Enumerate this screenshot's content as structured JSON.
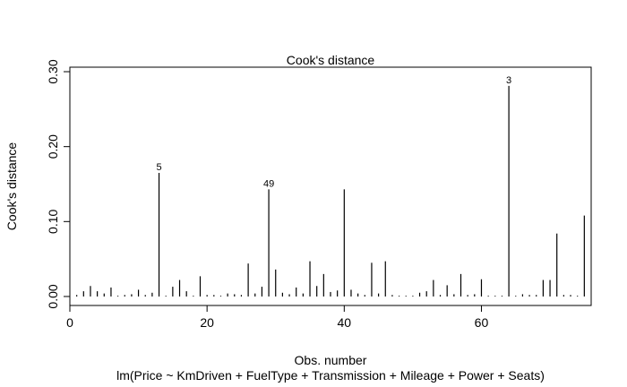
{
  "chart_data": {
    "type": "bar",
    "title": "Cook's distance",
    "xlabel": "Obs. number",
    "ylabel": "Cook's distance",
    "subtitle": "lm(Price ~ KmDriven + FuelType + Transmission + Mileage + Power + Seats)",
    "xlim": [
      0,
      76
    ],
    "ylim": [
      -0.012,
      0.306
    ],
    "xticks": [
      0,
      20,
      40,
      60
    ],
    "yticks": [
      0.0,
      0.1,
      0.2,
      0.3
    ],
    "ytick_labels": [
      "0.00",
      "0.10",
      "0.20",
      "0.30"
    ],
    "grid": false,
    "x": [
      1,
      2,
      3,
      4,
      5,
      6,
      7,
      8,
      9,
      10,
      11,
      12,
      13,
      14,
      15,
      16,
      17,
      18,
      19,
      20,
      21,
      22,
      23,
      24,
      25,
      26,
      27,
      28,
      29,
      30,
      31,
      32,
      33,
      34,
      35,
      36,
      37,
      38,
      39,
      40,
      41,
      42,
      43,
      44,
      45,
      46,
      47,
      48,
      49,
      50,
      51,
      52,
      53,
      54,
      55,
      56,
      57,
      58,
      59,
      60,
      61,
      62,
      63,
      64,
      65,
      66,
      67,
      68,
      69,
      70,
      71,
      72,
      73,
      74,
      75
    ],
    "values": [
      0.002,
      0.007,
      0.014,
      0.007,
      0.004,
      0.012,
      0.001,
      0.002,
      0.003,
      0.009,
      0.002,
      0.005,
      0.165,
      0.001,
      0.013,
      0.022,
      0.007,
      0.001,
      0.027,
      0.002,
      0.002,
      0.001,
      0.004,
      0.003,
      0.002,
      0.044,
      0.004,
      0.013,
      0.143,
      0.036,
      0.005,
      0.003,
      0.012,
      0.004,
      0.047,
      0.014,
      0.03,
      0.006,
      0.008,
      0.143,
      0.009,
      0.004,
      0.002,
      0.045,
      0.004,
      0.047,
      0.002,
      0.001,
      0.001,
      0.001,
      0.005,
      0.007,
      0.022,
      0.002,
      0.015,
      0.003,
      0.03,
      0.002,
      0.003,
      0.023,
      0.001,
      0.001,
      0.001,
      0.281,
      0.001,
      0.003,
      0.002,
      0.002,
      0.022,
      0.022,
      0.084,
      0.002,
      0.002,
      0.001,
      0.108
    ],
    "annotations": [
      {
        "x": 13,
        "label": "5"
      },
      {
        "x": 29,
        "label": "49"
      },
      {
        "x": 64,
        "label": "3"
      }
    ]
  }
}
